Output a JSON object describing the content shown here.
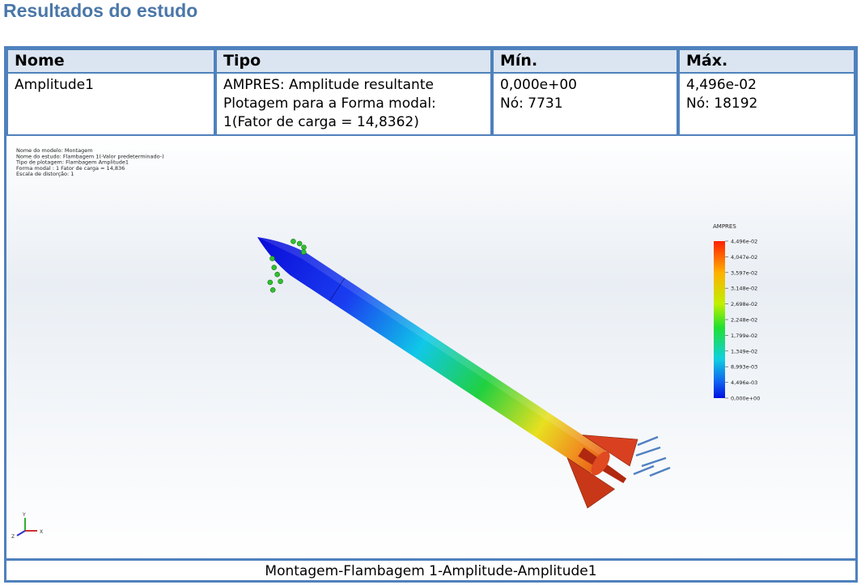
{
  "header": {
    "title": "Resultados do estudo"
  },
  "table": {
    "columns": [
      "Nome",
      "Tipo",
      "Mín.",
      "Máx."
    ],
    "rows": [
      [
        [
          "Amplitude1"
        ],
        [
          "AMPRES: Amplitude resultante",
          "Plotagem para a Forma modal:",
          "1(Fator de carga = 14,8362)"
        ],
        [
          "0,000e+00",
          "Nó: 7731"
        ],
        [
          "4,496e-02",
          "Nó: 18192"
        ]
      ]
    ]
  },
  "figure": {
    "info": [
      "Nome do modelo: Montagem",
      "Nome do estudo: Flambagem 1(-Valor predeterminado-)",
      "Tipo de plotagem: Flambagem Amplitude1",
      "Forma modal : 1  Fator de carga = 14,836",
      "Escala de distorção: 1"
    ],
    "legend": {
      "title": "AMPRES",
      "labels": [
        "4,496e-02",
        "4,047e-02",
        "3,597e-02",
        "3,148e-02",
        "2,698e-02",
        "2,248e-02",
        "1,799e-02",
        "1,349e-02",
        "8,993e-03",
        "4,496e-03",
        "0,000e+00"
      ]
    },
    "axes": [
      "Y",
      "X",
      "Z"
    ],
    "caption": "Montagem-Flambagem 1-Amplitude-Amplitude1"
  }
}
